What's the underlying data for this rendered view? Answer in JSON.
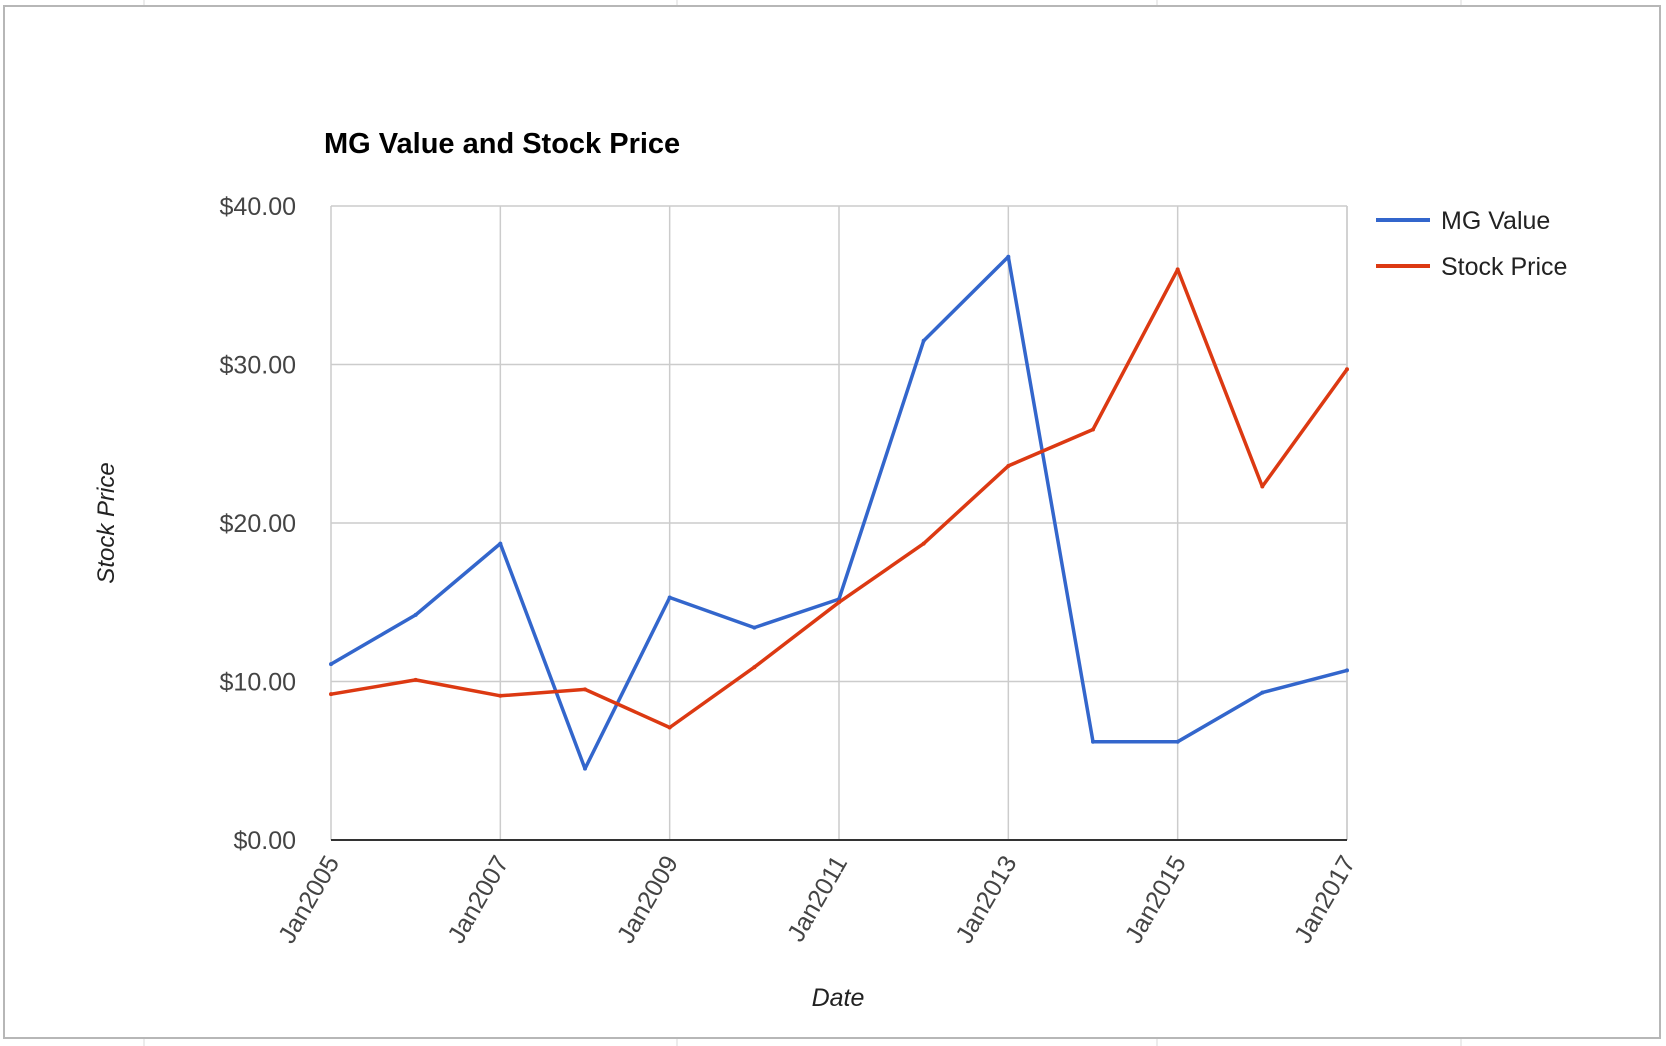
{
  "chart_data": {
    "type": "line",
    "title": "MG Value and Stock Price",
    "xlabel": "Date",
    "ylabel": "Stock Price",
    "x": [
      "Jan2005",
      "Jan2006",
      "Jan2007",
      "Jan2008",
      "Jan2009",
      "Jan2010",
      "Jan2011",
      "Jan2012",
      "Jan2013",
      "Jan2014",
      "Jan2015",
      "Jan2016",
      "Jan2017"
    ],
    "x_tick_labels": [
      "Jan2005",
      "Jan2007",
      "Jan2009",
      "Jan2011",
      "Jan2013",
      "Jan2015",
      "Jan2017"
    ],
    "y_tick_labels": [
      "$0.00",
      "$10.00",
      "$20.00",
      "$30.00",
      "$40.00"
    ],
    "ylim": [
      0,
      40
    ],
    "grid": true,
    "legend_position": "right",
    "series": [
      {
        "name": "MG Value",
        "color": "#3366cc",
        "values": [
          11.1,
          14.2,
          18.7,
          4.5,
          15.3,
          13.4,
          15.2,
          31.5,
          36.8,
          6.2,
          6.2,
          9.3,
          10.7
        ]
      },
      {
        "name": "Stock Price",
        "color": "#dc3912",
        "values": [
          9.2,
          10.1,
          9.1,
          9.5,
          7.1,
          10.9,
          15.0,
          18.7,
          23.6,
          25.9,
          36.0,
          22.3,
          29.7
        ]
      }
    ]
  }
}
